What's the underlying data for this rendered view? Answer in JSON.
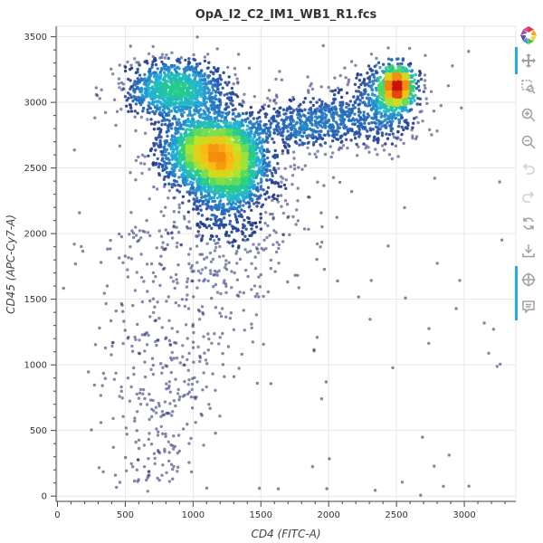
{
  "chart_data": {
    "type": "scatter",
    "title": "OpA_I2_C2_IM1_WB1_R1.fcs",
    "xlabel": "CD4 (FITC-A)",
    "ylabel": "CD45 (APC-Cy7-A)",
    "xlim": [
      -10,
      3380
    ],
    "ylim": [
      -40,
      3580
    ],
    "xticks": [
      0,
      500,
      1000,
      1500,
      2000,
      2500,
      3000
    ],
    "yticks": [
      0,
      500,
      1000,
      1500,
      2000,
      2500,
      3000,
      3500
    ],
    "grid": true,
    "colormap": "density (navy → blue → cyan → green → yellow → orange → red)",
    "populations": [
      {
        "cx": 1150,
        "cy": 2620,
        "sx": 180,
        "sy": 140,
        "n": 2600,
        "role": "main dense cluster"
      },
      {
        "cx": 1260,
        "cy": 2460,
        "sx": 130,
        "sy": 180,
        "n": 900,
        "role": "lower shoulder"
      },
      {
        "cx": 880,
        "cy": 3100,
        "sx": 190,
        "sy": 110,
        "n": 1100,
        "role": "upper-left cluster"
      },
      {
        "cx": 2500,
        "cy": 3120,
        "sx": 55,
        "sy": 75,
        "n": 900,
        "role": "upper-right dense cluster"
      },
      {
        "cx": 2420,
        "cy": 3000,
        "sx": 150,
        "sy": 160,
        "n": 500,
        "role": "upper-right halo"
      },
      {
        "cx": 1870,
        "cy": 2850,
        "sx": 230,
        "sy": 110,
        "n": 550,
        "role": "bridge"
      },
      {
        "cx": 1300,
        "cy": 2200,
        "sx": 280,
        "sy": 320,
        "n": 450,
        "role": "scatter halo"
      },
      {
        "cx": 800,
        "cy": 1100,
        "sx": 280,
        "sy": 600,
        "n": 420,
        "role": "low tail"
      }
    ]
  },
  "toolbar": {
    "items": [
      {
        "name": "bokeh-logo-icon",
        "active": false
      },
      {
        "name": "pan-icon",
        "active": true
      },
      {
        "name": "box-zoom-icon",
        "active": false
      },
      {
        "name": "zoom-in-icon",
        "active": false
      },
      {
        "name": "zoom-out-icon",
        "active": false
      },
      {
        "name": "undo-icon",
        "active": false
      },
      {
        "name": "redo-icon",
        "active": false
      },
      {
        "name": "reset-icon",
        "active": false
      },
      {
        "name": "save-icon",
        "active": false
      },
      {
        "name": "crosshair-icon",
        "active": true
      },
      {
        "name": "hover-icon",
        "active": true
      }
    ]
  }
}
